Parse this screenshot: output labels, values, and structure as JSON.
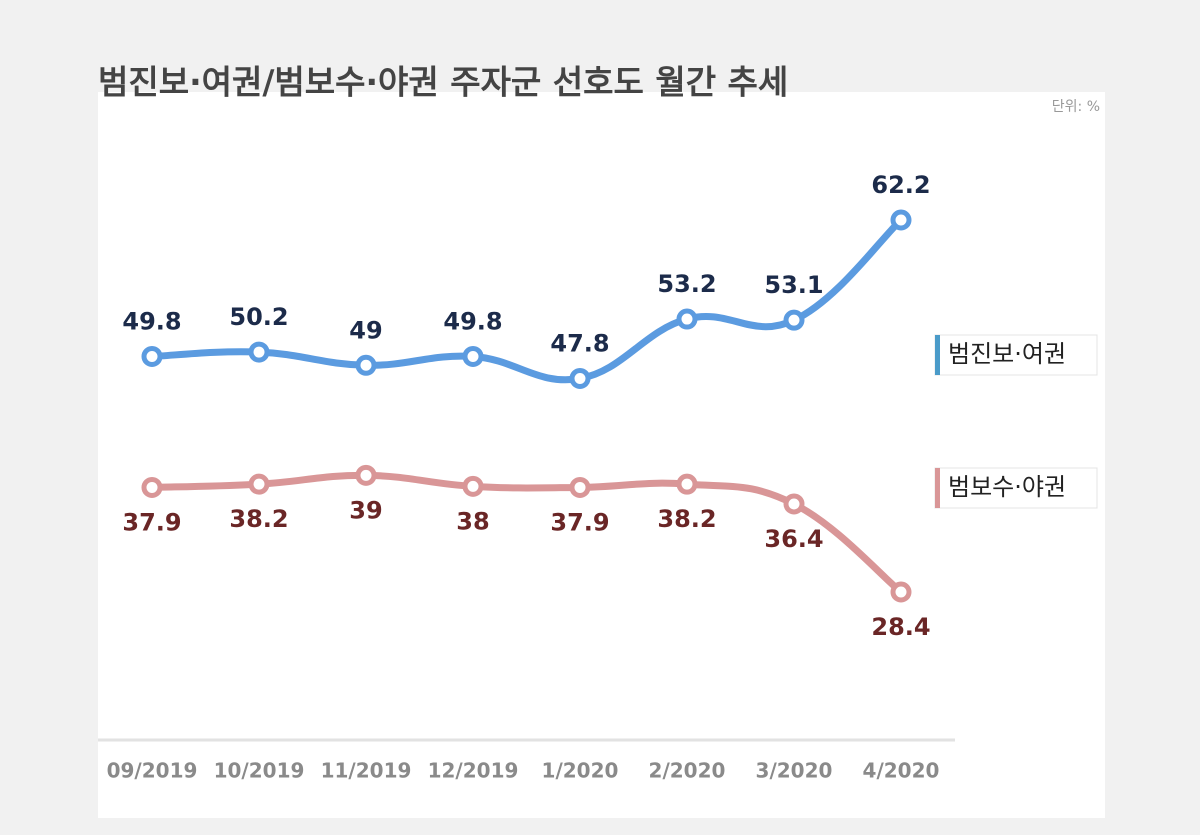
{
  "chart_data": {
    "type": "line",
    "title": "범진보·여권/범보수·야권 주자군 선호도 월간 추세",
    "unit": "단위: %",
    "categories": [
      "09/2019",
      "10/2019",
      "11/2019",
      "12/2019",
      "1/2020",
      "2/2020",
      "3/2020",
      "4/2020"
    ],
    "series": [
      {
        "name": "범진보·여권",
        "color": "#5b9be0",
        "label_color": "#1c2b4a",
        "values": [
          49.8,
          50.2,
          49.0,
          49.8,
          47.8,
          53.2,
          53.1,
          62.2
        ]
      },
      {
        "name": "범보수·야권",
        "color": "#d99697",
        "label_color": "#6a2626",
        "values": [
          37.9,
          38.2,
          39.0,
          38.0,
          37.9,
          38.2,
          36.4,
          28.4
        ]
      }
    ]
  }
}
